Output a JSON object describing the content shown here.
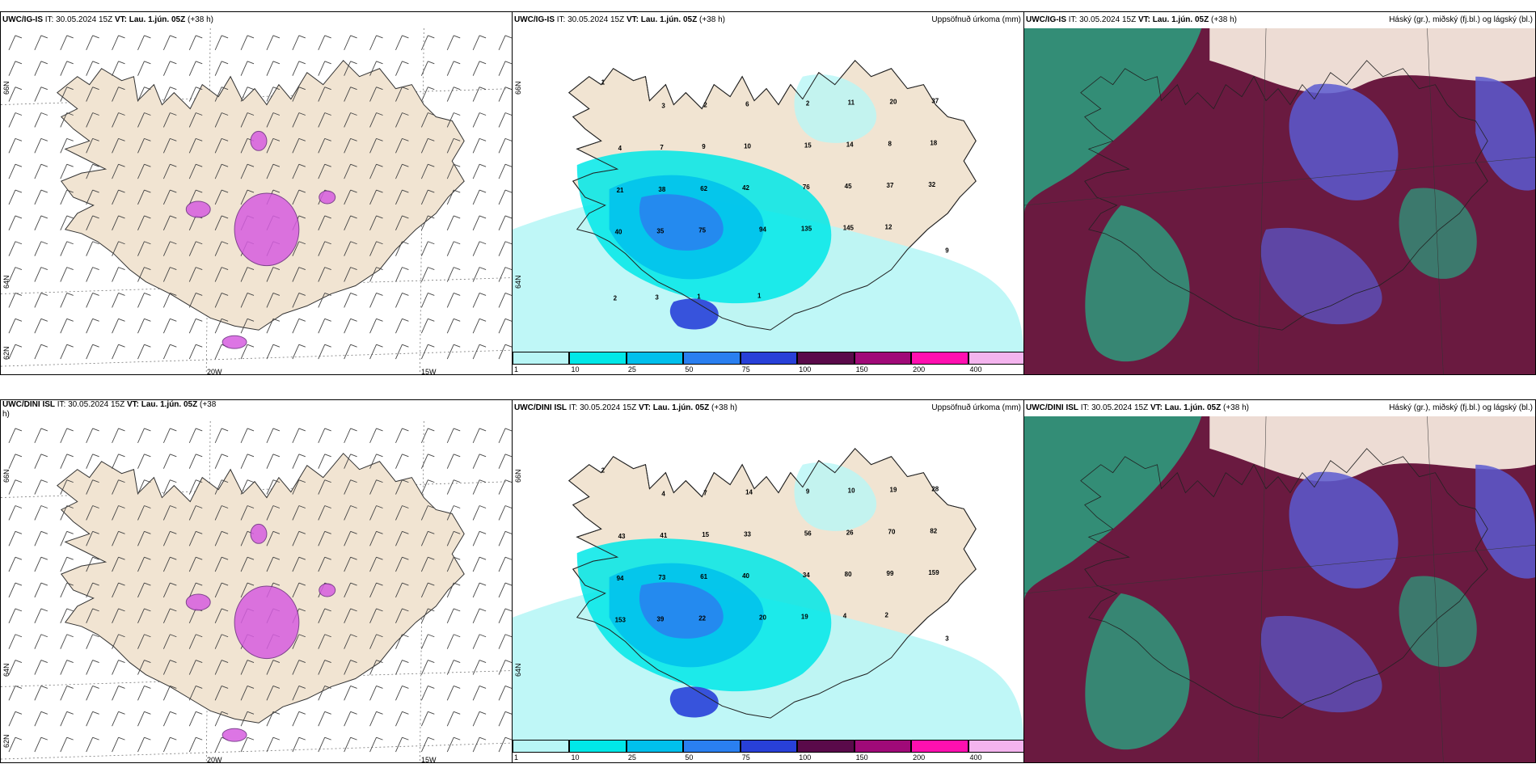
{
  "panels": [
    {
      "id": "p1",
      "model": "UWC/IG-IS",
      "it": "IT: 30.05.2024 15Z",
      "vt_label": "VT:",
      "vt": "Lau. 1.jún. 05Z",
      "offset": "(+38 h)",
      "right": ""
    },
    {
      "id": "p2",
      "model": "UWC/IG-IS",
      "it": "IT: 30.05.2024 15Z",
      "vt_label": "VT:",
      "vt": "Lau. 1.jún. 05Z",
      "offset": "(+38 h)",
      "right": "Uppsöfnuð úrkoma (mm)"
    },
    {
      "id": "p3",
      "model": "UWC/IG-IS",
      "it": "IT: 30.05.2024 15Z",
      "vt_label": "VT:",
      "vt": "Lau. 1.jún. 05Z",
      "offset": "(+38 h)",
      "right": "Háský (gr.), miðský (fj.bl.) og lágský (bl.)"
    },
    {
      "id": "p4",
      "model": "UWC/DINI ISL",
      "it": "IT: 30.05.2024 15Z",
      "vt_label": "VT:",
      "vt": "Lau. 1.jún. 05Z",
      "offset": "(+38",
      "offset2": "h)",
      "right": ""
    },
    {
      "id": "p5",
      "model": "UWC/DINI ISL",
      "it": "IT: 30.05.2024 15Z",
      "vt_label": "VT:",
      "vt": "Lau. 1.jún. 05Z",
      "offset": "(+38 h)",
      "right": "Uppsöfnuð úrkoma (mm)"
    },
    {
      "id": "p6",
      "model": "UWC/DINI ISL",
      "it": "IT: 30.05.2024 15Z",
      "vt_label": "VT:",
      "vt": "Lau. 1.jún. 05Z",
      "offset": "(+38 h)",
      "right": "Háský (gr.), miðský (fj.bl.) og lágský (bl.)"
    }
  ],
  "axis_labels": {
    "lat66": "66N",
    "lat64": "64N",
    "lat62": "62N",
    "lon20": "20W",
    "lon15": "15W"
  },
  "colorbar": {
    "ticks": [
      "1",
      "10",
      "25",
      "50",
      "75",
      "100",
      "150",
      "200",
      "400"
    ],
    "colors": [
      "#b8f6f6",
      "#00e8e8",
      "#00c0ec",
      "#2a7ff0",
      "#2840d8",
      "#5a0a4a",
      "#a00a78",
      "#ff10b0",
      "#f4b4ee"
    ]
  },
  "precip_top": [
    "1",
    "3",
    "2",
    "6",
    "2",
    "11",
    "20",
    "37",
    "4",
    "7",
    "9",
    "10",
    "15",
    "14",
    "8",
    "18",
    "21",
    "38",
    "62",
    "42",
    "76",
    "45",
    "37",
    "32",
    "40",
    "35",
    "75",
    "94",
    "135",
    "145",
    "12",
    "9",
    "2",
    "3",
    "1",
    "1"
  ],
  "precip_bottom": [
    "2",
    "4",
    "7",
    "14",
    "9",
    "10",
    "19",
    "28",
    "43",
    "41",
    "15",
    "33",
    "56",
    "26",
    "70",
    "82",
    "94",
    "73",
    "61",
    "40",
    "34",
    "80",
    "99",
    "159",
    "153",
    "39",
    "22",
    "20",
    "19",
    "4",
    "2",
    "3"
  ],
  "colors": {
    "land": "#f1e4d2",
    "ocean": "#ffffff",
    "high_cloud": "#2e9a7c",
    "mid_cloud": "#6a2a40",
    "low_cloud": "#5a5ad0"
  }
}
